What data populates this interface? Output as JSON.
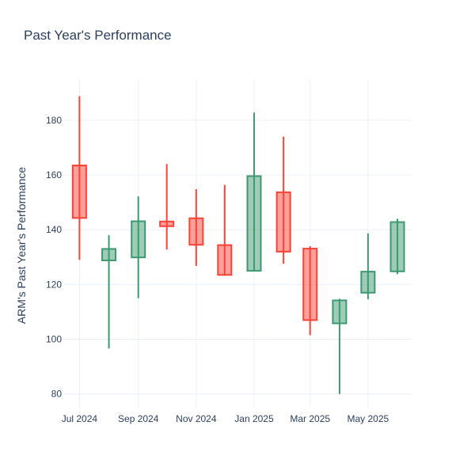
{
  "chart_data": {
    "type": "candlestick",
    "title": "Past Year's Performance",
    "xlabel": "",
    "ylabel": "ARM's Past Year's Performance",
    "ylim": [
      75,
      195
    ],
    "yticks": [
      80,
      100,
      120,
      140,
      160,
      180
    ],
    "xlim": [
      "2024-06-14",
      "2025-06-16"
    ],
    "xticks": [
      {
        "date": "2024-07-01",
        "label": "Jul 2024"
      },
      {
        "date": "2024-09-01",
        "label": "Sep 2024"
      },
      {
        "date": "2024-11-01",
        "label": "Nov 2024"
      },
      {
        "date": "2025-01-01",
        "label": "Jan 2025"
      },
      {
        "date": "2025-03-01",
        "label": "Mar 2025"
      },
      {
        "date": "2025-05-01",
        "label": "May 2025"
      }
    ],
    "grid": true,
    "increasing_color": "#3d9970",
    "decreasing_color": "#ff4136",
    "candles": [
      {
        "date": "2024-07-01",
        "open": 163.5,
        "high": 188.8,
        "low": 129.0,
        "close": 144.3
      },
      {
        "date": "2024-08-01",
        "open": 128.8,
        "high": 138.0,
        "low": 96.6,
        "close": 133.0
      },
      {
        "date": "2024-09-01",
        "open": 129.9,
        "high": 152.2,
        "low": 115.0,
        "close": 143.1
      },
      {
        "date": "2024-10-01",
        "open": 143.0,
        "high": 164.0,
        "low": 132.8,
        "close": 141.3
      },
      {
        "date": "2024-11-01",
        "open": 144.2,
        "high": 154.8,
        "low": 126.8,
        "close": 134.5
      },
      {
        "date": "2024-12-01",
        "open": 134.4,
        "high": 156.4,
        "low": 123.5,
        "close": 123.5
      },
      {
        "date": "2025-01-01",
        "open": 125.0,
        "high": 182.8,
        "low": 125.0,
        "close": 159.6
      },
      {
        "date": "2025-02-01",
        "open": 153.7,
        "high": 174.0,
        "low": 127.6,
        "close": 132.0
      },
      {
        "date": "2025-03-01",
        "open": 133.1,
        "high": 134.0,
        "low": 101.5,
        "close": 107.0
      },
      {
        "date": "2025-04-01",
        "open": 105.8,
        "high": 114.8,
        "low": 80.0,
        "close": 114.2
      },
      {
        "date": "2025-05-01",
        "open": 117.0,
        "high": 138.7,
        "low": 114.6,
        "close": 124.7
      },
      {
        "date": "2025-06-01",
        "open": 124.8,
        "high": 144.0,
        "low": 123.8,
        "close": 142.8
      }
    ]
  }
}
